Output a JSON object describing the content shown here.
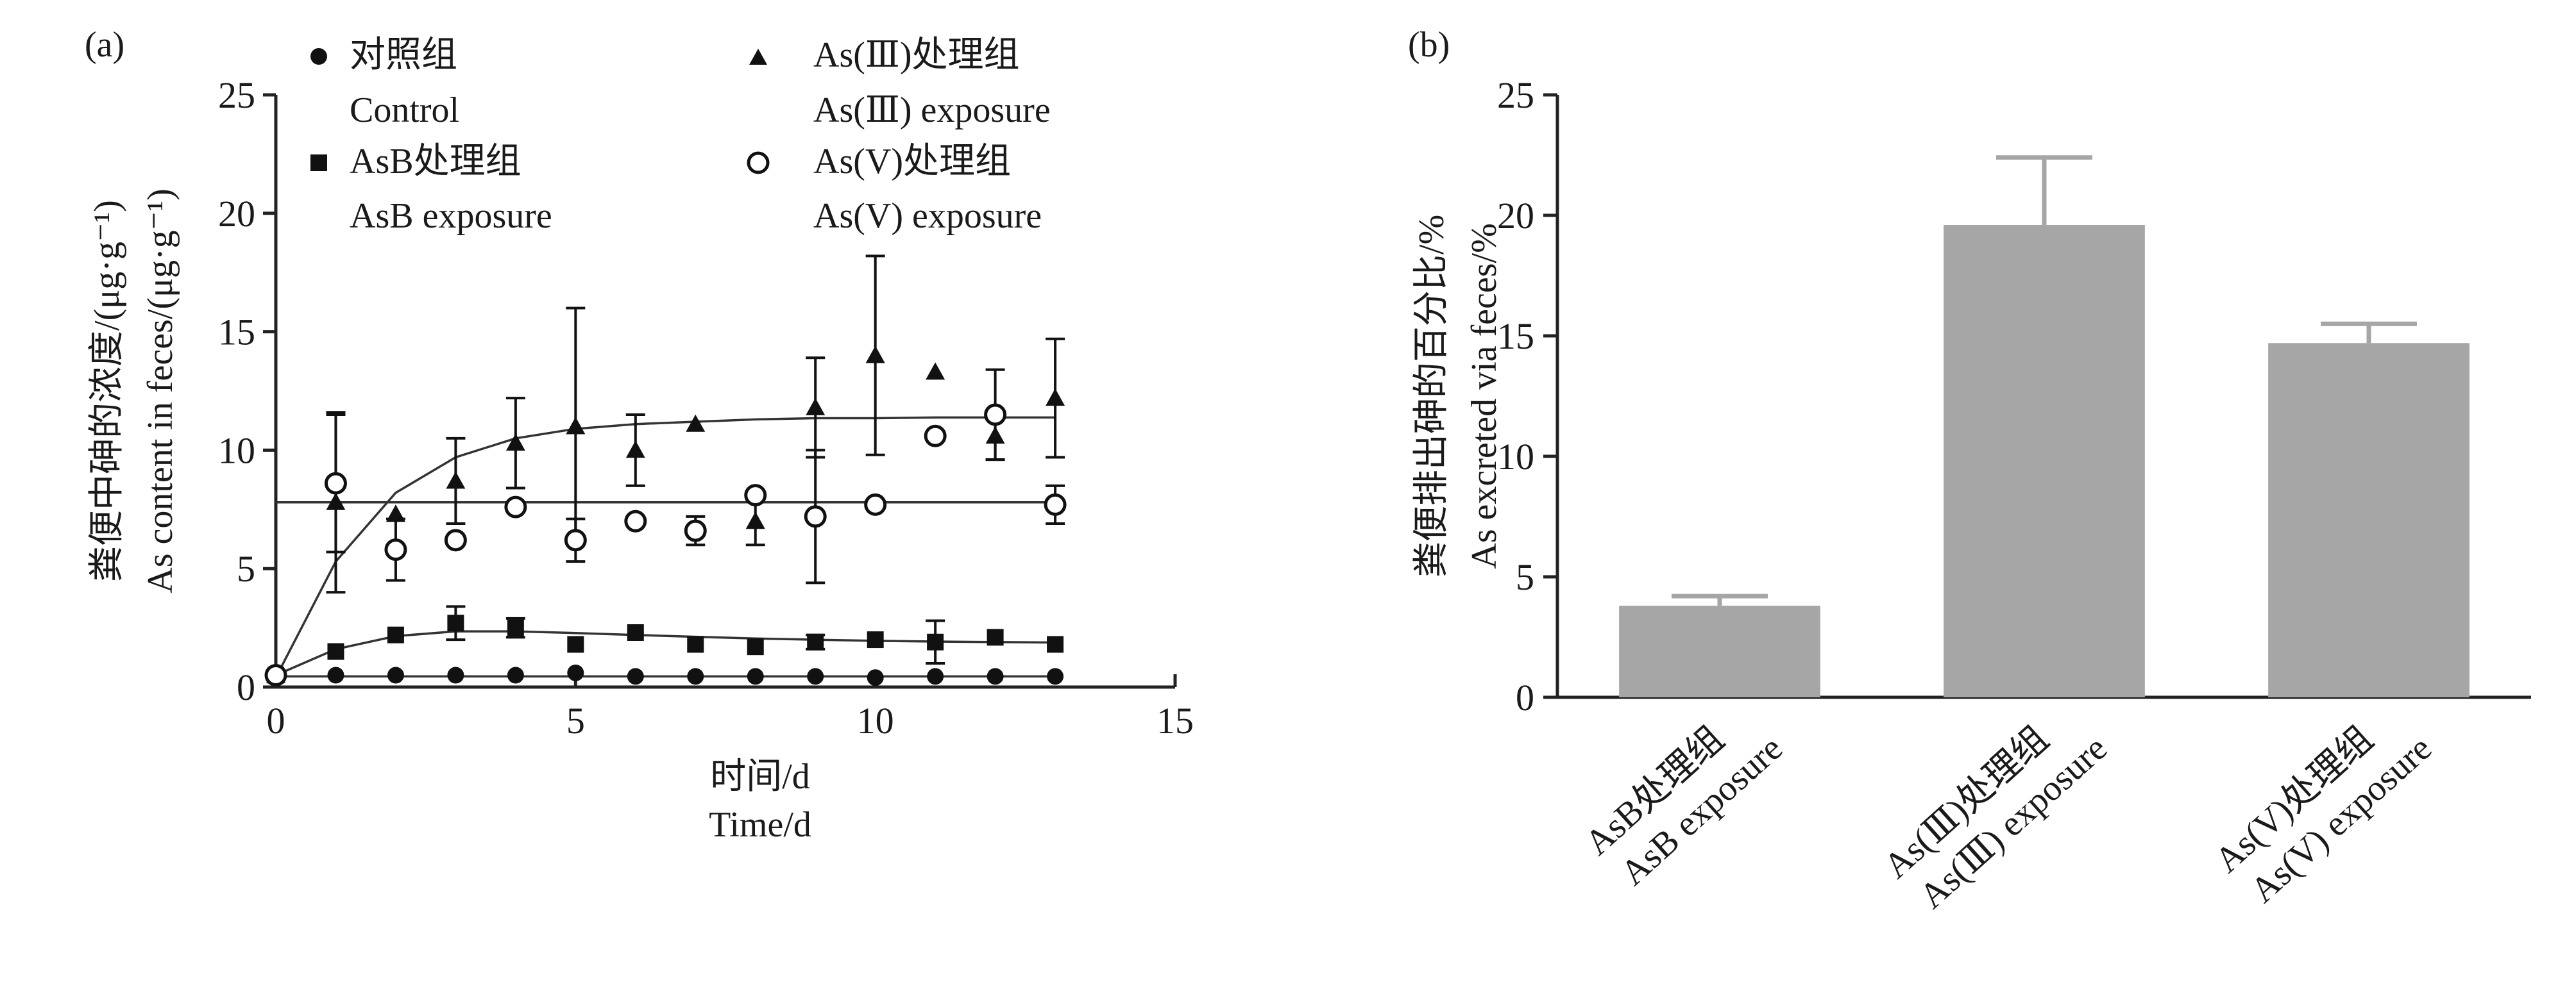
{
  "chart_data": [
    {
      "panel_label": "(a)",
      "type": "scatter",
      "xlabel_zh": "时间/d",
      "xlabel_en": "Time/d",
      "ylabel_zh": "粪便中砷的浓度/(μg·g⁻¹)",
      "ylabel_en": "As content in feces/(μg·g⁻¹)",
      "xlim": [
        0,
        15
      ],
      "ylim": [
        0,
        25
      ],
      "xticks": [
        0,
        5,
        10,
        15
      ],
      "yticks": [
        0,
        5,
        10,
        15,
        20,
        25
      ],
      "grid": false,
      "legend_position": "top",
      "series": [
        {
          "name_zh": "对照组",
          "name_en": "Control",
          "marker": "filled-circle",
          "x": [
            0,
            1,
            2,
            3,
            4,
            5,
            6,
            7,
            8,
            9,
            10,
            11,
            12,
            13
          ],
          "y": [
            0.5,
            0.5,
            0.5,
            0.5,
            0.5,
            0.6,
            0.45,
            0.45,
            0.45,
            0.45,
            0.4,
            0.45,
            0.45,
            0.45
          ],
          "err": [
            0,
            0,
            0,
            0,
            0,
            0,
            0,
            0,
            0,
            0,
            0,
            0,
            0,
            0
          ],
          "fit": {
            "x": [
              0,
              13
            ],
            "y": [
              0.45,
              0.45
            ]
          }
        },
        {
          "name_zh": "AsB处理组",
          "name_en": "AsB exposure",
          "marker": "filled-square",
          "x": [
            0,
            1,
            2,
            3,
            4,
            5,
            6,
            7,
            8,
            9,
            10,
            11,
            12,
            13
          ],
          "y": [
            0.5,
            1.5,
            2.2,
            2.7,
            2.5,
            1.8,
            2.3,
            1.8,
            1.7,
            1.9,
            2.0,
            1.9,
            2.1,
            1.8
          ],
          "err": [
            0,
            0,
            0,
            0.7,
            0.4,
            0,
            0,
            0,
            0,
            0.3,
            0,
            0.9,
            0,
            0
          ],
          "fit": {
            "x": [
              0,
              1,
              2,
              3,
              4,
              5,
              6,
              7,
              8,
              9,
              10,
              11,
              12,
              13
            ],
            "y": [
              0.5,
              1.6,
              2.15,
              2.35,
              2.35,
              2.28,
              2.2,
              2.12,
              2.05,
              2.0,
              1.95,
              1.92,
              1.9,
              1.88
            ]
          }
        },
        {
          "name_zh": "As(Ⅲ)处理组",
          "name_en": "As(Ⅲ) exposure",
          "marker": "filled-triangle",
          "x": [
            0,
            1,
            2,
            3,
            4,
            5,
            6,
            7,
            8,
            9,
            10,
            11,
            12,
            13
          ],
          "y": [
            0.5,
            7.8,
            7.3,
            8.7,
            10.3,
            11.0,
            10.0,
            11.1,
            7.0,
            11.8,
            14.0,
            13.3,
            10.6,
            12.2
          ],
          "err": [
            0,
            3.8,
            0,
            1.8,
            1.9,
            5.0,
            1.5,
            0,
            1.0,
            2.1,
            4.2,
            0,
            1.0,
            2.5
          ],
          "fit": {
            "x": [
              0,
              1,
              2,
              3,
              4,
              5,
              6,
              7,
              8,
              9,
              10,
              11,
              12,
              13
            ],
            "y": [
              0.4,
              5.3,
              8.2,
              9.7,
              10.5,
              10.9,
              11.1,
              11.2,
              11.3,
              11.35,
              11.35,
              11.38,
              11.38,
              11.38
            ]
          }
        },
        {
          "name_zh": "As(V)处理组",
          "name_en": "As(V) exposure",
          "marker": "open-circle",
          "x": [
            0,
            1,
            2,
            3,
            4,
            5,
            6,
            7,
            8,
            9,
            10,
            11,
            12,
            13
          ],
          "y": [
            0.5,
            8.6,
            5.8,
            6.2,
            7.6,
            6.2,
            7.0,
            6.6,
            8.1,
            7.2,
            7.7,
            10.6,
            11.5,
            7.7
          ],
          "err": [
            0,
            2.9,
            1.3,
            0,
            0,
            0.9,
            0,
            0.6,
            0,
            2.8,
            0,
            0,
            1.9,
            0.8
          ],
          "fit": {
            "x": [
              0,
              13
            ],
            "y": [
              7.8,
              7.8
            ]
          }
        }
      ]
    },
    {
      "panel_label": "(b)",
      "type": "bar",
      "ylabel_zh": "粪便排出砷的百分比/%",
      "ylabel_en": "As excreted via feces/%",
      "ylim": [
        0,
        25
      ],
      "yticks": [
        0,
        5,
        10,
        15,
        20,
        25
      ],
      "grid": false,
      "bar_color": "#a6a6a6",
      "categories": [
        {
          "zh": "AsB处理组",
          "en": "AsB exposure"
        },
        {
          "zh": "As(Ⅲ)处理组",
          "en": "As(Ⅲ) exposure"
        },
        {
          "zh": "As(V)处理组",
          "en": "As(V) exposure"
        }
      ],
      "values": [
        3.8,
        19.6,
        14.7
      ],
      "errors": [
        0.4,
        2.8,
        0.8
      ]
    }
  ]
}
